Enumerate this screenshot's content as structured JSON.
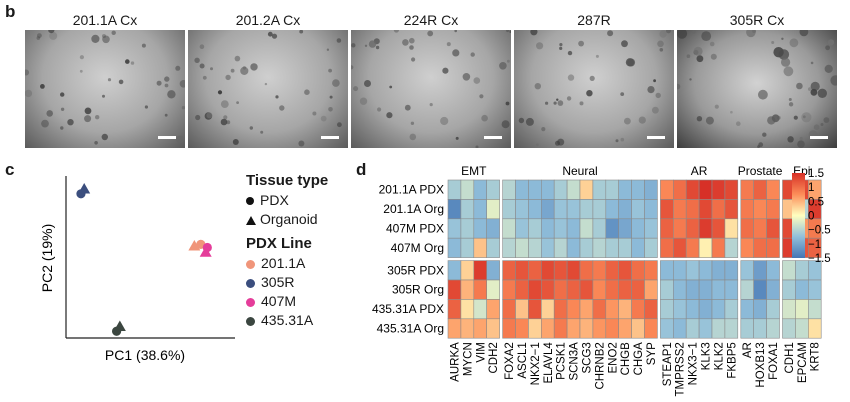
{
  "panel_b": {
    "label": "b",
    "images": [
      {
        "title": "201.1A Cx"
      },
      {
        "title": "201.2A Cx"
      },
      {
        "title": "224R Cx"
      },
      {
        "title": "287R"
      },
      {
        "title": "305R Cx"
      }
    ]
  },
  "panel_c": {
    "label": "c",
    "xlabel": "PC1 (38.6%)",
    "ylabel": "PC2 (19%)",
    "legend": {
      "tissue_title": "Tissue type",
      "tissue_items": [
        {
          "label": "PDX",
          "marker": "circle"
        },
        {
          "label": "Organoid",
          "marker": "triangle"
        }
      ],
      "line_title": "PDX Line",
      "line_items": [
        {
          "label": "201.1A",
          "color": "#f0957a"
        },
        {
          "label": "305R",
          "color": "#3b4e7e"
        },
        {
          "label": "407M",
          "color": "#e53d9a"
        },
        {
          "label": "435.31A",
          "color": "#3b4640"
        }
      ]
    }
  },
  "chart_data": [
    {
      "type": "scatter",
      "xlabel": "PC1 (38.6%)",
      "ylabel": "PC2 (19%)",
      "points": [
        {
          "line": "305R",
          "tissue": "PDX",
          "x": 0.08,
          "y": 0.9
        },
        {
          "line": "305R",
          "tissue": "Organoid",
          "x": 0.1,
          "y": 0.93
        },
        {
          "line": "201.1A",
          "tissue": "PDX",
          "x": 0.82,
          "y": 0.58
        },
        {
          "line": "201.1A",
          "tissue": "Organoid",
          "x": 0.78,
          "y": 0.57
        },
        {
          "line": "407M",
          "tissue": "PDX",
          "x": 0.86,
          "y": 0.56
        },
        {
          "line": "407M",
          "tissue": "Organoid",
          "x": 0.85,
          "y": 0.53
        },
        {
          "line": "435.31A",
          "tissue": "PDX",
          "x": 0.3,
          "y": 0.03
        },
        {
          "line": "435.31A",
          "tissue": "Organoid",
          "x": 0.32,
          "y": 0.06
        }
      ]
    },
    {
      "type": "heatmap",
      "rows": [
        "201.1A PDX",
        "201.1A Org",
        "407M PDX",
        "407M Org",
        "305R PDX",
        "305R Org",
        "435.31A PDX",
        "435.31A Org"
      ],
      "columns": [
        "AURKA",
        "MYCN",
        "VIM",
        "CDH2",
        "FOXA2",
        "ASCL1",
        "NKX2−1",
        "ELAVL4",
        "PCSK1",
        "SCN3A",
        "SCG3",
        "CHRNB2",
        "ENO2",
        "CHGB",
        "CHGA",
        "SYP",
        "STEAP1",
        "TMPRSS2",
        "NKX3−1",
        "KLK3",
        "KLK2",
        "FKBP5",
        "AR",
        "HOXB13",
        "FOXA1",
        "CDH1",
        "EPCAM",
        "KRT8"
      ],
      "groups": [
        {
          "name": "EMT",
          "count": 4
        },
        {
          "name": "Neural",
          "count": 12
        },
        {
          "name": "AR",
          "count": 6
        },
        {
          "name": "Prostate",
          "count": 3
        },
        {
          "name": "Epi",
          "count": 3
        }
      ],
      "colorbar": {
        "ticks": [
          "1.5",
          "1",
          "0.5",
          "0",
          "−0.5",
          "−1",
          "−1.5"
        ],
        "min": -1.5,
        "max": 1.5
      },
      "values": [
        [
          -0.6,
          -0.4,
          -0.8,
          -0.6,
          -0.5,
          -0.8,
          -0.8,
          -0.8,
          -0.6,
          -0.4,
          0.3,
          -0.6,
          -0.6,
          -0.8,
          -0.8,
          -0.9,
          0.8,
          1.0,
          1.3,
          1.5,
          1.4,
          1.3,
          0.9,
          1.1,
          0.8,
          1.3,
          1.3,
          0.6
        ],
        [
          -1.3,
          -0.6,
          -0.8,
          -0.2,
          -0.6,
          -0.7,
          -0.8,
          -1.0,
          -0.7,
          -0.7,
          -0.6,
          -0.6,
          -0.8,
          -0.9,
          -0.7,
          -0.8,
          1.2,
          0.9,
          1.0,
          1.3,
          1.0,
          1.2,
          0.9,
          0.8,
          0.9,
          0.4,
          -0.5,
          1.4
        ],
        [
          -0.7,
          -0.6,
          -0.8,
          -0.9,
          -0.4,
          -0.7,
          -0.6,
          -0.8,
          -0.7,
          -0.8,
          -0.4,
          -0.6,
          -1.2,
          -1.0,
          -0.8,
          -0.7,
          1.1,
          0.9,
          1.1,
          1.4,
          1.2,
          0.2,
          1.0,
          0.9,
          1.2,
          1.3,
          0.7,
          0.9
        ],
        [
          -0.8,
          -0.6,
          0.4,
          -0.6,
          -0.5,
          -0.4,
          -0.5,
          -0.7,
          -0.5,
          -0.8,
          -0.6,
          -0.5,
          -0.6,
          -0.6,
          -0.8,
          -0.6,
          1.0,
          1.2,
          0.9,
          0.1,
          0.9,
          -0.5,
          0.8,
          1.0,
          1.0,
          1.4,
          1.2,
          1.1
        ],
        [
          -0.8,
          0.3,
          1.4,
          -0.9,
          1.1,
          1.2,
          1.1,
          1.3,
          1.2,
          1.3,
          1.0,
          0.9,
          1.1,
          1.2,
          1.0,
          0.9,
          -0.8,
          -0.8,
          -0.7,
          -0.8,
          -0.9,
          -0.9,
          -0.7,
          -1.1,
          -0.8,
          -0.4,
          -0.6,
          -0.7
        ],
        [
          1.3,
          0.5,
          0.9,
          -0.2,
          0.9,
          1.1,
          1.3,
          1.2,
          1.0,
          1.1,
          1.2,
          0.8,
          1.0,
          1.1,
          1.1,
          0.6,
          -0.6,
          -0.8,
          -0.9,
          -0.9,
          -0.8,
          -0.8,
          -0.5,
          -1.3,
          -0.9,
          -0.6,
          -0.8,
          -0.7
        ],
        [
          1.1,
          0.2,
          -0.3,
          0.6,
          1.0,
          0.4,
          1.2,
          0.3,
          1.0,
          0.8,
          0.6,
          1.0,
          0.7,
          0.5,
          0.9,
          1.1,
          -0.6,
          -0.7,
          -0.8,
          -0.9,
          -0.8,
          -0.6,
          -0.8,
          -0.9,
          -0.6,
          -0.3,
          -0.2,
          -0.4
        ],
        [
          0.6,
          0.5,
          0.6,
          0.4,
          0.9,
          0.8,
          0.3,
          0.6,
          0.9,
          0.6,
          0.5,
          0.7,
          0.8,
          0.6,
          0.4,
          0.8,
          -0.7,
          -0.8,
          -0.6,
          -0.7,
          -0.5,
          -0.5,
          -0.6,
          -0.6,
          -0.5,
          -0.5,
          -0.4,
          0.2
        ]
      ]
    }
  ],
  "panel_d": {
    "label": "d"
  }
}
